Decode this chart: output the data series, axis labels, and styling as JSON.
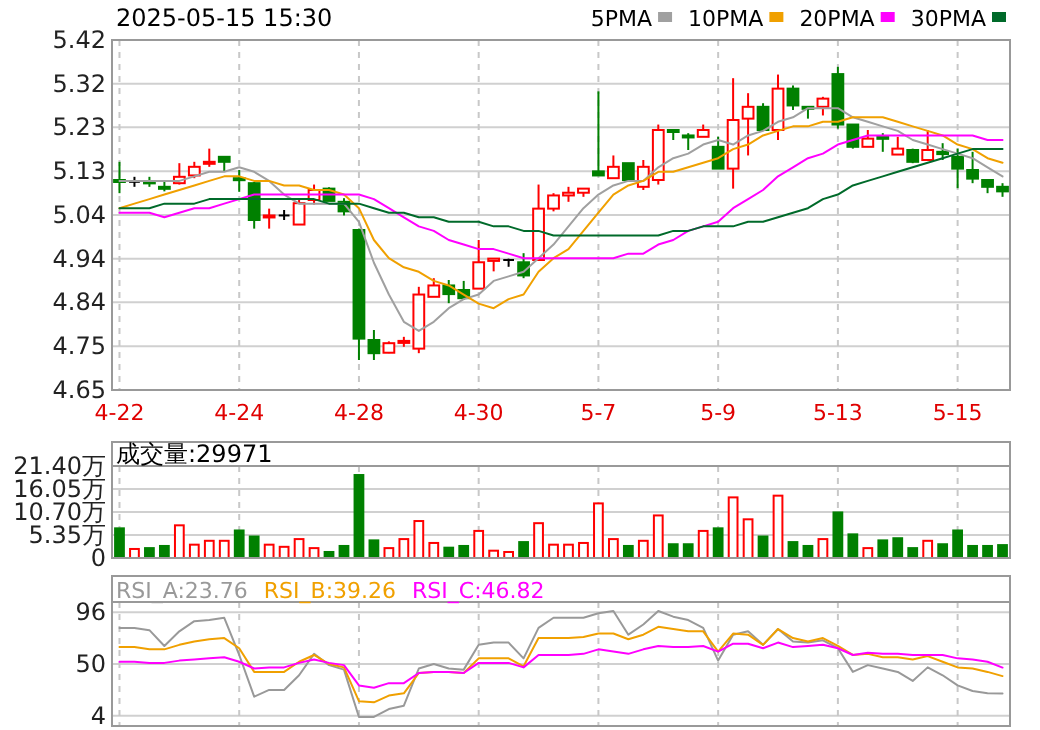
{
  "chart_data": [
    {
      "type": "candlestick",
      "title": "2025-05-15 15:30",
      "categories": [
        "4-22",
        null,
        null,
        null,
        null,
        null,
        null,
        null,
        "4-24",
        null,
        null,
        null,
        null,
        null,
        null,
        null,
        "4-28",
        null,
        null,
        null,
        null,
        null,
        null,
        null,
        "4-30",
        null,
        null,
        null,
        null,
        null,
        null,
        null,
        "5-7",
        null,
        null,
        null,
        null,
        null,
        null,
        null,
        "5-9",
        null,
        null,
        null,
        null,
        null,
        null,
        null,
        "5-13",
        null,
        null,
        null,
        null,
        null,
        null,
        null,
        "5-15",
        null,
        null,
        null
      ],
      "ohlc": [
        [
          5.112,
          5.152,
          5.083,
          5.108
        ],
        [
          5.108,
          5.119,
          5.097,
          5.108
        ],
        [
          5.109,
          5.119,
          5.097,
          5.106
        ],
        [
          5.097,
          5.108,
          5.087,
          5.094
        ],
        [
          5.105,
          5.149,
          5.102,
          5.119
        ],
        [
          5.122,
          5.152,
          5.116,
          5.141
        ],
        [
          5.149,
          5.181,
          5.141,
          5.152
        ],
        [
          5.163,
          5.163,
          5.131,
          5.152
        ],
        [
          5.116,
          5.134,
          5.086,
          5.112
        ],
        [
          5.105,
          5.108,
          5.005,
          5.024
        ],
        [
          5.031,
          5.049,
          5.005,
          5.034
        ],
        [
          5.034,
          5.046,
          5.024,
          5.034
        ],
        [
          5.014,
          5.068,
          5.014,
          5.061
        ],
        [
          5.068,
          5.102,
          5.058,
          5.09
        ],
        [
          5.093,
          5.096,
          5.066,
          5.066
        ],
        [
          5.064,
          5.072,
          5.034,
          5.043
        ],
        [
          5.002,
          5.005,
          4.716,
          4.763
        ],
        [
          4.76,
          4.782,
          4.716,
          4.731
        ],
        [
          4.732,
          4.757,
          4.731,
          4.753
        ],
        [
          4.756,
          4.767,
          4.745,
          4.758
        ],
        [
          4.741,
          4.877,
          4.731,
          4.86
        ],
        [
          4.855,
          4.896,
          4.855,
          4.88
        ],
        [
          4.88,
          4.892,
          4.841,
          4.861
        ],
        [
          4.87,
          4.89,
          4.848,
          4.852
        ],
        [
          4.873,
          4.98,
          4.873,
          4.931
        ],
        [
          4.934,
          4.939,
          4.911,
          4.939
        ],
        [
          4.936,
          4.939,
          4.921,
          4.936
        ],
        [
          4.931,
          4.951,
          4.896,
          4.902
        ],
        [
          4.936,
          5.102,
          4.936,
          5.049
        ],
        [
          5.049,
          5.083,
          5.043,
          5.078
        ],
        [
          5.078,
          5.097,
          5.064,
          5.084
        ],
        [
          5.084,
          5.093,
          5.075,
          5.093
        ],
        [
          5.131,
          5.307,
          5.122,
          5.122
        ],
        [
          5.116,
          5.166,
          5.116,
          5.141
        ],
        [
          5.149,
          5.149,
          5.112,
          5.112
        ],
        [
          5.097,
          5.156,
          5.09,
          5.141
        ],
        [
          5.112,
          5.234,
          5.102,
          5.222
        ],
        [
          5.222,
          5.222,
          5.2,
          5.218
        ],
        [
          5.21,
          5.215,
          5.178,
          5.207
        ],
        [
          5.207,
          5.234,
          5.207,
          5.222
        ],
        [
          5.185,
          5.207,
          5.137,
          5.137
        ],
        [
          5.137,
          5.336,
          5.093,
          5.244
        ],
        [
          5.247,
          5.303,
          5.166,
          5.273
        ],
        [
          5.273,
          5.281,
          5.222,
          5.222
        ],
        [
          5.222,
          5.344,
          5.2,
          5.313
        ],
        [
          5.313,
          5.32,
          5.266,
          5.276
        ],
        [
          5.273,
          5.273,
          5.247,
          5.269
        ],
        [
          5.273,
          5.295,
          5.254,
          5.291
        ],
        [
          5.345,
          5.361,
          5.225,
          5.234
        ],
        [
          5.234,
          5.234,
          5.181,
          5.185
        ],
        [
          5.185,
          5.222,
          5.185,
          5.203
        ],
        [
          5.207,
          5.215,
          5.174,
          5.203
        ],
        [
          5.168,
          5.207,
          5.168,
          5.181
        ],
        [
          5.178,
          5.181,
          5.149,
          5.152
        ],
        [
          5.156,
          5.222,
          5.156,
          5.178
        ],
        [
          5.174,
          5.193,
          5.156,
          5.169
        ],
        [
          5.163,
          5.181,
          5.094,
          5.137
        ],
        [
          5.134,
          5.174,
          5.105,
          5.115
        ],
        [
          5.112,
          5.112,
          5.083,
          5.097
        ],
        [
          5.097,
          5.105,
          5.075,
          5.087
        ]
      ],
      "colors": [
        "#008000",
        "#000000",
        "#008000",
        "#008000",
        "#ff0000",
        "#ff0000",
        "#ff0000",
        "#008000",
        "#008000",
        "#008000",
        "#ff0000",
        "#000000",
        "#ff0000",
        "#ff0000",
        "#008000",
        "#008000",
        "#008000",
        "#008000",
        "#ff0000",
        "#ff0000",
        "#ff0000",
        "#ff0000",
        "#008000",
        "#008000",
        "#ff0000",
        "#ff0000",
        "#000000",
        "#008000",
        "#ff0000",
        "#ff0000",
        "#ff0000",
        "#ff0000",
        "#008000",
        "#ff0000",
        "#008000",
        "#ff0000",
        "#ff0000",
        "#008000",
        "#008000",
        "#ff0000",
        "#008000",
        "#ff0000",
        "#ff0000",
        "#008000",
        "#ff0000",
        "#008000",
        "#008000",
        "#ff0000",
        "#008000",
        "#008000",
        "#ff0000",
        "#008000",
        "#ff0000",
        "#008000",
        "#ff0000",
        "#008000",
        "#008000",
        "#008000",
        "#008000",
        "#008000"
      ],
      "series": [
        {
          "name": "5PMA",
          "type": "line",
          "color": "#a0a0a0",
          "values": [
            5.11,
            5.11,
            5.11,
            5.11,
            5.11,
            5.12,
            5.13,
            5.13,
            5.14,
            5.13,
            5.11,
            5.08,
            5.06,
            5.06,
            5.06,
            5.06,
            5.02,
            4.93,
            4.86,
            4.8,
            4.78,
            4.8,
            4.83,
            4.85,
            4.86,
            4.89,
            4.9,
            4.91,
            4.94,
            4.97,
            5.01,
            5.05,
            5.08,
            5.1,
            5.11,
            5.11,
            5.14,
            5.16,
            5.17,
            5.19,
            5.2,
            5.19,
            5.21,
            5.22,
            5.24,
            5.25,
            5.27,
            5.27,
            5.27,
            5.25,
            5.24,
            5.23,
            5.22,
            5.2,
            5.19,
            5.18,
            5.17,
            5.16,
            5.14,
            5.12
          ]
        },
        {
          "name": "10PMA",
          "type": "line",
          "color": "#f0a000",
          "values": [
            5.05,
            5.06,
            5.07,
            5.08,
            5.09,
            5.1,
            5.11,
            5.12,
            5.12,
            5.11,
            5.11,
            5.1,
            5.1,
            5.09,
            5.09,
            5.08,
            5.05,
            4.98,
            4.94,
            4.92,
            4.91,
            4.89,
            4.88,
            4.86,
            4.84,
            4.83,
            4.85,
            4.86,
            4.91,
            4.94,
            4.96,
            5.0,
            5.04,
            5.08,
            5.1,
            5.11,
            5.13,
            5.13,
            5.14,
            5.15,
            5.16,
            5.18,
            5.19,
            5.21,
            5.22,
            5.23,
            5.23,
            5.24,
            5.24,
            5.25,
            5.25,
            5.25,
            5.24,
            5.23,
            5.22,
            5.21,
            5.19,
            5.18,
            5.16,
            5.15
          ]
        },
        {
          "name": "20PMA",
          "type": "line",
          "color": "#ff00ff",
          "values": [
            5.04,
            5.04,
            5.04,
            5.03,
            5.04,
            5.05,
            5.05,
            5.06,
            5.07,
            5.08,
            5.08,
            5.08,
            5.08,
            5.08,
            5.08,
            5.08,
            5.08,
            5.07,
            5.05,
            5.03,
            5.01,
            5.0,
            4.98,
            4.97,
            4.96,
            4.96,
            4.95,
            4.94,
            4.94,
            4.94,
            4.94,
            4.94,
            4.94,
            4.94,
            4.95,
            4.95,
            4.97,
            4.98,
            5.0,
            5.01,
            5.02,
            5.05,
            5.07,
            5.09,
            5.12,
            5.14,
            5.16,
            5.17,
            5.19,
            5.2,
            5.21,
            5.21,
            5.21,
            5.21,
            5.21,
            5.21,
            5.21,
            5.21,
            5.2,
            5.2
          ]
        },
        {
          "name": "30PMA",
          "type": "line",
          "color": "#006a2a",
          "values": [
            5.05,
            5.05,
            5.05,
            5.06,
            5.06,
            5.06,
            5.07,
            5.07,
            5.07,
            5.07,
            5.07,
            5.07,
            5.07,
            5.07,
            5.06,
            5.06,
            5.06,
            5.05,
            5.04,
            5.04,
            5.03,
            5.03,
            5.02,
            5.02,
            5.02,
            5.01,
            5.01,
            5.0,
            5.0,
            4.99,
            4.99,
            4.99,
            4.99,
            4.99,
            4.99,
            4.99,
            4.99,
            5.0,
            5.0,
            5.01,
            5.01,
            5.01,
            5.02,
            5.02,
            5.03,
            5.04,
            5.05,
            5.07,
            5.08,
            5.1,
            5.11,
            5.12,
            5.13,
            5.14,
            5.15,
            5.16,
            5.17,
            5.18,
            5.18,
            5.18
          ]
        }
      ],
      "ylim": [
        4.65,
        5.42
      ],
      "yticks": [
        4.65,
        {
          "value": 4.746,
          "label": "4.75"
        },
        {
          "value": 4.843,
          "label": "4.84"
        },
        {
          "value": 4.939,
          "label": "4.94"
        },
        {
          "value": 5.035,
          "label": "5.04"
        },
        {
          "value": 5.131,
          "label": "5.13"
        },
        {
          "value": 5.228,
          "label": "5.23"
        },
        {
          "value": 5.324,
          "label": "5.32"
        },
        5.42
      ],
      "grid": true,
      "legend": "top right"
    },
    {
      "type": "bar",
      "title": "成交量:29971",
      "tick_labels": "y",
      "categories": [
        null,
        null,
        null,
        null,
        null,
        null,
        null,
        null,
        null,
        null,
        null,
        null,
        null,
        null,
        null,
        null,
        null,
        null,
        null,
        null,
        null,
        null,
        null,
        null,
        null,
        null,
        null,
        null,
        null,
        null,
        null,
        null,
        null,
        null,
        null,
        null,
        null,
        null,
        null,
        null,
        null,
        null,
        null,
        null,
        null,
        null,
        null,
        null,
        null,
        null,
        null,
        null,
        null,
        null,
        null,
        null,
        null,
        null,
        null,
        null
      ],
      "series": [
        {
          "color": "#ff0000",
          "values": [
            null,
            2.1,
            null,
            null,
            7.6,
            3.1,
            4.0,
            4.0,
            null,
            null,
            3.1,
            2.6,
            4.4,
            2.3,
            null,
            null,
            null,
            null,
            2.3,
            4.4,
            8.6,
            3.5,
            null,
            null,
            6.3,
            1.7,
            1.4,
            null,
            8.1,
            3.1,
            3.1,
            3.5,
            12.7,
            4.4,
            null,
            4.0,
            9.9,
            null,
            null,
            6.3,
            null,
            14.1,
            9.0,
            null,
            14.5,
            null,
            null,
            4.4,
            null,
            null,
            2.3,
            null,
            null,
            null,
            4.0,
            null,
            null,
            null,
            null,
            null
          ]
        },
        {
          "color": "#008000",
          "values": [
            6.9,
            null,
            2.3,
            2.8,
            null,
            null,
            null,
            null,
            6.4,
            5.0,
            null,
            null,
            null,
            null,
            1.4,
            2.8,
            19.3,
            4.1,
            null,
            null,
            null,
            null,
            2.4,
            2.8,
            null,
            null,
            null,
            3.7,
            null,
            null,
            null,
            null,
            null,
            null,
            2.8,
            null,
            null,
            3.2,
            3.2,
            null,
            6.9,
            null,
            null,
            5.0,
            null,
            3.7,
            2.8,
            null,
            10.6,
            5.5,
            null,
            4.1,
            4.6,
            2.3,
            null,
            3.2,
            6.4,
            2.8,
            2.8,
            3.0
          ]
        }
      ],
      "ylim": [
        0,
        21.4
      ],
      "yticks": [
        0,
        {
          "value": 5.35,
          "label": "5.35万"
        },
        {
          "value": 10.7,
          "label": "10.70万"
        },
        {
          "value": 16.05,
          "label": "16.05万"
        },
        {
          "value": 21.4,
          "label": "21.40万"
        }
      ],
      "grid": true
    },
    {
      "type": "line",
      "tick_labels": "y",
      "legend": "top left",
      "categories": [
        null,
        null,
        null,
        null,
        null,
        null,
        null,
        null,
        null,
        null,
        null,
        null,
        null,
        null,
        null,
        null,
        null,
        null,
        null,
        null,
        null,
        null,
        null,
        null,
        null,
        null,
        null,
        null,
        null,
        null,
        null,
        null,
        null,
        null,
        null,
        null,
        null,
        null,
        null,
        null,
        null,
        null,
        null,
        null,
        null,
        null,
        null,
        null,
        null,
        null,
        null,
        null,
        null,
        null,
        null,
        null,
        null,
        null,
        null,
        null
      ],
      "series": [
        {
          "name": "RSI_A:23.76",
          "color": "#999999",
          "values": [
            82,
            82,
            80,
            66,
            79,
            88,
            89,
            91,
            58,
            21,
            27,
            27,
            40,
            59,
            49,
            45,
            3,
            3,
            10,
            13,
            46,
            50,
            46,
            45,
            67,
            69,
            69,
            55,
            82,
            91,
            91,
            91,
            95,
            97,
            76,
            85,
            97,
            92,
            89,
            82,
            53,
            76,
            79,
            67,
            81,
            70,
            69,
            71,
            64,
            43,
            49,
            46,
            43,
            35,
            47,
            40,
            31,
            26,
            24,
            23.76
          ]
        },
        {
          "name": "RSI_B:39.26",
          "color": "#f0a000",
          "values": [
            65,
            65,
            63,
            63,
            67,
            70,
            72,
            73,
            64,
            43,
            43,
            43,
            52,
            58,
            50,
            47,
            17,
            16,
            22,
            24,
            42,
            43,
            43,
            42,
            55,
            55,
            55,
            48,
            73,
            73,
            73,
            74,
            77,
            77,
            72,
            76,
            83,
            81,
            79,
            79,
            61,
            77,
            76,
            67,
            81,
            73,
            70,
            73,
            66,
            58,
            59,
            56,
            56,
            54,
            57,
            52,
            47,
            46,
            43,
            39.26
          ]
        },
        {
          "name": "RSI_C:46.82",
          "color": "#ff00ff",
          "values": [
            52,
            52,
            51,
            51,
            53,
            54,
            55,
            56,
            52,
            46,
            47,
            47,
            51,
            54,
            51,
            49,
            31,
            29,
            33,
            33,
            42,
            43,
            43,
            42,
            51,
            51,
            51,
            47,
            58,
            58,
            58,
            59,
            63,
            61,
            59,
            63,
            66,
            65,
            65,
            66,
            61,
            68,
            68,
            64,
            69,
            65,
            66,
            67,
            64,
            58,
            60,
            59,
            59,
            58,
            58,
            58,
            55,
            54,
            52,
            46.82
          ]
        }
      ],
      "ylim": [
        -5,
        105
      ],
      "yticks": [
        4,
        50,
        96
      ],
      "grid": true
    }
  ]
}
